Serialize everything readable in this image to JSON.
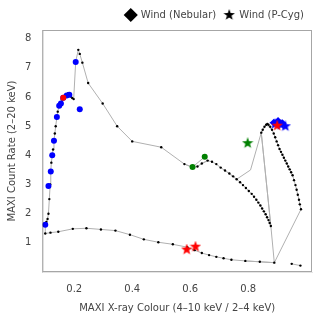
{
  "chart_data": {
    "type": "scatter",
    "xlabel": "MAXI X-ray Colour (4–10 keV / 2–4 keV)",
    "ylabel": "MAXI Count Rate (2–20 keV)",
    "xlim": [
      0.09,
      1.02
    ],
    "ylim": [
      0.0,
      8.3
    ],
    "xticks": [
      0.2,
      0.4,
      0.6,
      0.8
    ],
    "yticks": [
      1,
      2,
      3,
      4,
      5,
      6,
      7,
      8
    ],
    "grid": false,
    "legend": "upper right",
    "series": [
      {
        "type": "line",
        "color": "#b0b0b0",
        "marker": "none",
        "line_style": "solid",
        "x": [
          0.1,
          0.104,
          0.108,
          0.111,
          0.114,
          0.117,
          0.119,
          0.121,
          0.124,
          0.127,
          0.13,
          0.133,
          0.136,
          0.14,
          0.143,
          0.148,
          0.152,
          0.157,
          0.162,
          0.168,
          0.174,
          0.178,
          0.183,
          0.188,
          0.193,
          0.198,
          0.205,
          0.214,
          0.219,
          0.228,
          0.248,
          0.298,
          0.348,
          0.4,
          0.5,
          0.58
        ],
        "values": [
          1.62,
          1.72,
          1.82,
          2.0,
          2.5,
          3.0,
          3.45,
          3.75,
          4.0,
          4.2,
          4.5,
          4.75,
          5.0,
          5.3,
          5.5,
          5.7,
          5.82,
          5.92,
          5.98,
          6.02,
          6.05,
          6.12,
          6.08,
          6.02,
          5.97,
          5.93,
          7.22,
          7.62,
          7.48,
          7.18,
          6.48,
          5.78,
          5.0,
          4.48,
          4.28,
          3.7
        ]
      },
      {
        "type": "line",
        "color": "#b0b0b0",
        "marker": "none",
        "line_style": "solid",
        "x": [
          0.58,
          0.61,
          0.625,
          0.64,
          0.66,
          0.675,
          0.69,
          0.705,
          0.72,
          0.735,
          0.748,
          0.76,
          0.772,
          0.782,
          0.792,
          0.802,
          0.812,
          0.82,
          0.828,
          0.835,
          0.842,
          0.848,
          0.854,
          0.86,
          0.865,
          0.87,
          0.874,
          0.878
        ],
        "values": [
          3.7,
          3.58,
          3.62,
          3.72,
          3.82,
          3.78,
          3.7,
          3.58,
          3.48,
          3.38,
          3.28,
          3.18,
          3.08,
          2.98,
          2.88,
          2.78,
          2.68,
          2.58,
          2.48,
          2.38,
          2.28,
          2.18,
          2.08,
          1.98,
          1.88,
          1.78,
          1.68,
          1.58
        ]
      },
      {
        "type": "line",
        "color": "#b0b0b0",
        "marker": "none",
        "line_style": "solid",
        "x": [
          0.878,
          0.845,
          0.85,
          0.856,
          0.862,
          0.866,
          0.87,
          0.876,
          0.882,
          0.888,
          0.893,
          0.898,
          0.903,
          0.908,
          0.913,
          0.918,
          0.923,
          0.928,
          0.933,
          0.938,
          0.943,
          0.948,
          0.953,
          0.958,
          0.963,
          0.967,
          0.971,
          0.975,
          0.978,
          0.982
        ],
        "values": [
          1.58,
          4.78,
          4.88,
          4.98,
          5.05,
          5.08,
          5.05,
          4.98,
          4.88,
          4.75,
          4.62,
          4.48,
          4.35,
          4.22,
          4.12,
          4.02,
          3.92,
          3.82,
          3.72,
          3.62,
          3.52,
          3.42,
          3.32,
          3.15,
          2.98,
          2.82,
          2.65,
          2.48,
          2.32,
          2.15
        ]
      },
      {
        "type": "line",
        "color": "#b0b0b0",
        "marker": "none",
        "line_style": "solid",
        "x": [
          0.1,
          0.118,
          0.145,
          0.195,
          0.242,
          0.292,
          0.342,
          0.392,
          0.44,
          0.49,
          0.54,
          0.59,
          0.615,
          0.64,
          0.665,
          0.69,
          0.715,
          0.742,
          0.79,
          0.84,
          0.89
        ],
        "values": [
          1.32,
          1.35,
          1.38,
          1.48,
          1.5,
          1.46,
          1.42,
          1.28,
          1.12,
          1.02,
          0.95,
          0.85,
          0.75,
          0.65,
          0.58,
          0.52,
          0.47,
          0.42,
          0.38,
          0.35,
          0.32
        ]
      },
      {
        "type": "line",
        "color": "#b0b0b0",
        "marker": "none",
        "line_style": "solid",
        "x": [
          0.1,
          0.1
        ],
        "values": [
          1.32,
          1.62
        ]
      },
      {
        "type": "line",
        "color": "#b0b0b0",
        "marker": "none",
        "line_style": "solid",
        "x": [
          0.878,
          0.89
        ],
        "values": [
          1.58,
          0.32
        ]
      },
      {
        "type": "line",
        "color": "#b0b0b0",
        "marker": "none",
        "line_style": "solid",
        "x": [
          0.89,
          0.982
        ],
        "values": [
          0.32,
          2.15
        ]
      },
      {
        "type": "line",
        "color": "#b0b0b0",
        "marker": "none",
        "line_style": "solid",
        "x": [
          0.95,
          0.98
        ],
        "values": [
          0.28,
          0.22
        ]
      },
      {
        "type": "line",
        "color": "#b0b0b0",
        "marker": "none",
        "line_style": "solid",
        "x": [
          0.845,
          0.862
        ],
        "values": [
          4.78,
          5.05
        ]
      },
      {
        "type": "line",
        "color": "#b0b0b0",
        "marker": "none",
        "line_style": "solid",
        "x": [
          0.862,
          0.882
        ],
        "values": [
          5.05,
          4.88
        ]
      },
      {
        "type": "line",
        "color": "#b0b0b0",
        "marker": "none",
        "line_style": "solid",
        "x": [
          0.808,
          0.845
        ],
        "values": [
          3.5,
          4.78
        ]
      },
      {
        "type": "line",
        "color": "#b0b0b0",
        "marker": "none",
        "line_style": "solid",
        "x": [
          0.76,
          0.808
        ],
        "values": [
          3.18,
          3.5
        ]
      },
      {
        "type": "line",
        "color": "#b0b0b0",
        "marker": "none",
        "line_style": "solid",
        "x": [
          0.878,
          0.845
        ],
        "values": [
          1.58,
          4.78
        ]
      },
      {
        "type": "line",
        "color": "#b0b0b0",
        "marker": "none",
        "line_style": "solid",
        "x": [
          0.64,
          0.66
        ],
        "values": [
          3.72,
          3.82
        ]
      },
      {
        "type": "line",
        "color": "#b0b0b0",
        "marker": "none",
        "line_style": "solid",
        "x": [
          0.58,
          0.608
        ],
        "values": [
          3.7,
          3.6
        ]
      },
      {
        "type": "line",
        "color": "#b0b0b0",
        "marker": "none",
        "line_style": "solid",
        "x": [
          0.608,
          0.65
        ],
        "values": [
          3.6,
          3.95
        ]
      },
      {
        "type": "line",
        "color": "#b0b0b0",
        "marker": "none",
        "line_style": "solid",
        "x": [
          0.72,
          0.76
        ],
        "values": [
          3.48,
          3.18
        ]
      },
      {
        "type": "line",
        "color": "#b0b0b0",
        "marker": "none",
        "line_style": "solid",
        "x": [
          0.79,
          0.84
        ],
        "values": [
          0.38,
          0.35
        ]
      },
      {
        "type": "line",
        "color": "#b0b0b0",
        "marker": "none",
        "line_style": "solid",
        "x": [
          0.84,
          0.89
        ],
        "values": [
          0.35,
          0.32
        ]
      },
      {
        "type": "scatter",
        "color": "black",
        "marker": "dot",
        "line_style": "none",
        "x": [
          0.1,
          0.104,
          0.108,
          0.111,
          0.114,
          0.117,
          0.119,
          0.121,
          0.124,
          0.127,
          0.13,
          0.133,
          0.136,
          0.14,
          0.143,
          0.148,
          0.152,
          0.157,
          0.162,
          0.168,
          0.174,
          0.178,
          0.183,
          0.188,
          0.193,
          0.198,
          0.205,
          0.214,
          0.219,
          0.228,
          0.248,
          0.298,
          0.348,
          0.4,
          0.5,
          0.58,
          0.61,
          0.625,
          0.64,
          0.66,
          0.675,
          0.69,
          0.705,
          0.72,
          0.735,
          0.748,
          0.76,
          0.772,
          0.782,
          0.792,
          0.802,
          0.812,
          0.82,
          0.828,
          0.835,
          0.842,
          0.848,
          0.854,
          0.86,
          0.865,
          0.87,
          0.874,
          0.878,
          0.845,
          0.85,
          0.856,
          0.862,
          0.866,
          0.87,
          0.876,
          0.882,
          0.888,
          0.893,
          0.898,
          0.903,
          0.908,
          0.913,
          0.918,
          0.923,
          0.928,
          0.933,
          0.938,
          0.943,
          0.948,
          0.953,
          0.958,
          0.963,
          0.967,
          0.971,
          0.975,
          0.978,
          0.982
        ],
        "values": [
          1.62,
          1.72,
          1.82,
          2.0,
          2.5,
          3.0,
          3.45,
          3.75,
          4.0,
          4.2,
          4.5,
          4.75,
          5.0,
          5.3,
          5.5,
          5.7,
          5.82,
          5.92,
          5.98,
          6.02,
          6.05,
          6.12,
          6.08,
          6.02,
          5.97,
          5.93,
          7.22,
          7.62,
          7.48,
          7.18,
          6.48,
          5.78,
          5.0,
          4.48,
          4.28,
          3.7,
          3.58,
          3.62,
          3.72,
          3.82,
          3.78,
          3.7,
          3.58,
          3.48,
          3.38,
          3.28,
          3.18,
          3.08,
          2.98,
          2.88,
          2.78,
          2.68,
          2.58,
          2.48,
          2.38,
          2.28,
          2.18,
          2.08,
          1.98,
          1.88,
          1.78,
          1.68,
          1.58,
          4.78,
          4.88,
          4.98,
          5.05,
          5.08,
          5.05,
          4.98,
          4.88,
          4.75,
          4.62,
          4.48,
          4.35,
          4.22,
          4.12,
          4.02,
          3.92,
          3.82,
          3.72,
          3.62,
          3.52,
          3.42,
          3.32,
          3.15,
          2.98,
          2.82,
          2.65,
          2.48,
          2.32,
          2.15
        ]
      },
      {
        "type": "scatter",
        "color": "black",
        "marker": "dot",
        "line_style": "none",
        "x": [
          0.1,
          0.118,
          0.145,
          0.195,
          0.242,
          0.292,
          0.342,
          0.392,
          0.44,
          0.49,
          0.54,
          0.59,
          0.615,
          0.64,
          0.665,
          0.69,
          0.715,
          0.742,
          0.79,
          0.84,
          0.89,
          0.95,
          0.98
        ],
        "values": [
          1.32,
          1.35,
          1.38,
          1.48,
          1.5,
          1.46,
          1.42,
          1.28,
          1.12,
          1.02,
          0.95,
          0.85,
          0.75,
          0.65,
          0.58,
          0.52,
          0.47,
          0.42,
          0.38,
          0.35,
          0.32,
          0.28,
          0.22
        ]
      },
      {
        "type": "scatter",
        "color": "blue",
        "marker": "circle",
        "line_style": "none",
        "x": [
          0.1,
          0.111,
          0.119,
          0.124,
          0.13,
          0.14,
          0.148,
          0.154,
          0.162,
          0.174,
          0.183,
          0.205,
          0.219
        ],
        "values": [
          1.62,
          2.95,
          3.45,
          4.0,
          4.5,
          5.32,
          5.7,
          5.78,
          5.98,
          6.05,
          6.08,
          7.2,
          5.58
        ]
      },
      {
        "type": "scatter",
        "color": "red",
        "marker": "circle",
        "line_style": "none",
        "x": [
          0.162
        ],
        "values": [
          5.98
        ]
      },
      {
        "type": "scatter",
        "color": "green",
        "marker": "circle",
        "line_style": "none",
        "x": [
          0.608,
          0.65
        ],
        "values": [
          3.6,
          3.95
        ]
      },
      {
        "type": "scatter",
        "color": "red",
        "marker": "star",
        "line_style": "none",
        "x": [
          0.588,
          0.618
        ],
        "values": [
          0.77,
          0.87
        ]
      },
      {
        "type": "scatter",
        "color": "green",
        "marker": "star",
        "line_style": "none",
        "x": [
          0.798
        ],
        "values": [
          4.42
        ]
      },
      {
        "name": "Wind (P-Cyg)",
        "type": "scatter",
        "color": "blue",
        "marker": "star",
        "line_style": "none",
        "x": [
          0.893,
          0.913,
          0.928
        ],
        "values": [
          5.08,
          5.05,
          5.0
        ]
      },
      {
        "name": "Wind (Nebular)",
        "type": "scatter",
        "color": "blue",
        "marker": "diamond",
        "line_style": "none",
        "x": [
          0.888,
          0.903,
          0.918
        ],
        "values": [
          5.12,
          5.18,
          5.1
        ]
      },
      {
        "type": "scatter",
        "color": "red",
        "marker": "star",
        "line_style": "none",
        "x": [
          0.9
        ],
        "values": [
          5.02
        ]
      }
    ]
  }
}
